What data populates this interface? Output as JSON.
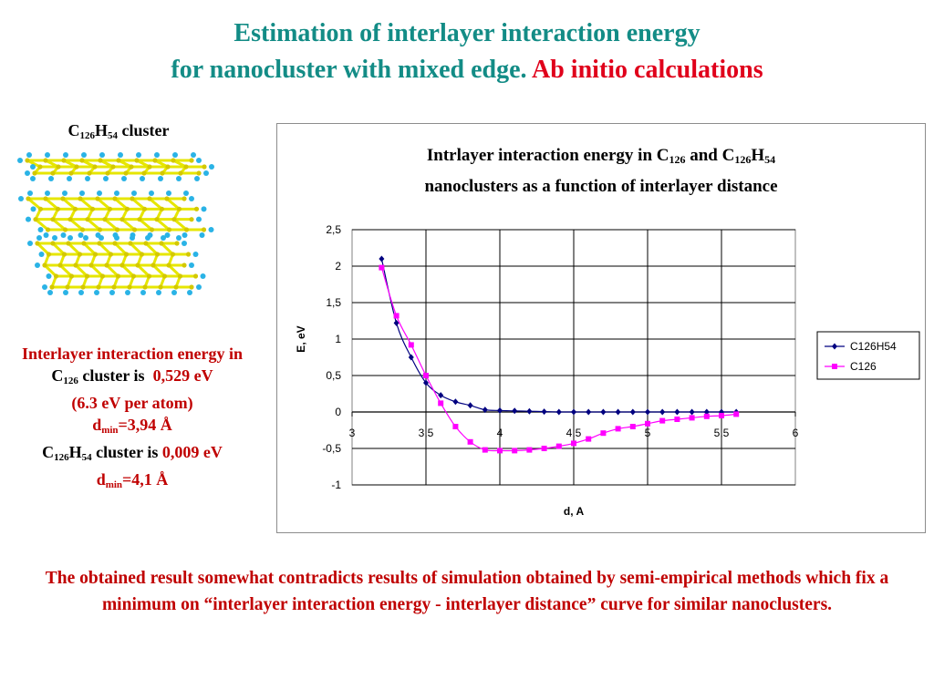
{
  "slide": {
    "title_line1": "Estimation of interlayer interaction energy",
    "title_line2_a": "for nanocluster with mixed edge.",
    "title_line2_b": "Ab initio calculations",
    "cluster_label": {
      "c": "C",
      "c_sub": "126",
      "h": "H",
      "h_sub": "54",
      "rest": "cluster"
    },
    "energy_info": {
      "line1": "Interlayer interaction energy in",
      "c126_c": "C",
      "c126_sub": "126",
      "c126_text": "cluster is",
      "c126_value": "0,529 eV",
      "per_atom": "(6.3 eV per atom)",
      "dmin1_d": "d",
      "dmin1_sub": "min",
      "dmin1_val": "=3,94 Å",
      "c126h54_c": "C",
      "c126h54_csub": "126",
      "c126h54_h": "H",
      "c126h54_hsub": "54",
      "c126h54_text": "cluster is",
      "c126h54_value": "0,009 eV",
      "dmin2_d": "d",
      "dmin2_sub": "min",
      "dmin2_val": "=4,1 Å"
    },
    "conclusion": "The obtained result somewhat contradicts results of simulation obtained by semi-empirical methods which fix a minimum on “interlayer interaction energy - interlayer distance” curve for similar nanoclusters."
  },
  "colors": {
    "teal": "#138C86",
    "red": "#C00000",
    "series1": "#000080",
    "series2": "#FF00FF",
    "carbon": "#E6E600",
    "hydrogen": "#2AB3E6"
  },
  "chart_data": {
    "type": "line",
    "title_line1": [
      "Intrlayer interaction energy in C",
      "126",
      " and C",
      "126",
      "H",
      "54"
    ],
    "title_line2": "nanoclusters as a function of interlayer distance",
    "xlabel": "d, A",
    "ylabel": "E, eV",
    "xlim": [
      3,
      6
    ],
    "ylim": [
      -1,
      2.5
    ],
    "x_ticks": [
      "3",
      "3,5",
      "4",
      "4,5",
      "5",
      "5,5",
      "6"
    ],
    "y_ticks": [
      "2,5",
      "2",
      "1,5",
      "1",
      "0,5",
      "0",
      "-0,5",
      "-1"
    ],
    "grid": true,
    "legend": "right",
    "series": [
      {
        "name": "C126H54",
        "marker": "diamond",
        "x": [
          3.2,
          3.3,
          3.4,
          3.5,
          3.6,
          3.7,
          3.8,
          3.9,
          4.0,
          4.1,
          4.2,
          4.3,
          4.4,
          4.5,
          4.6,
          4.7,
          4.8,
          4.9,
          5.0,
          5.1,
          5.2,
          5.3,
          5.4,
          5.5,
          5.6
        ],
        "values": [
          2.1,
          1.22,
          0.75,
          0.4,
          0.23,
          0.14,
          0.09,
          0.03,
          0.02,
          0.015,
          0.01,
          0.005,
          0.0,
          0.0,
          0.0,
          0.0,
          0.0,
          0.0,
          0.0,
          0.0,
          0.0,
          0.0,
          0.0,
          0.0,
          0.0
        ]
      },
      {
        "name": "C126",
        "marker": "square",
        "x": [
          3.2,
          3.3,
          3.4,
          3.5,
          3.6,
          3.7,
          3.8,
          3.9,
          4.0,
          4.1,
          4.2,
          4.3,
          4.4,
          4.5,
          4.6,
          4.7,
          4.8,
          4.9,
          5.0,
          5.1,
          5.2,
          5.3,
          5.4,
          5.5,
          5.6
        ],
        "values": [
          1.98,
          1.32,
          0.92,
          0.5,
          0.12,
          -0.2,
          -0.41,
          -0.52,
          -0.53,
          -0.53,
          -0.52,
          -0.5,
          -0.47,
          -0.43,
          -0.37,
          -0.29,
          -0.23,
          -0.2,
          -0.16,
          -0.12,
          -0.1,
          -0.08,
          -0.06,
          -0.05,
          -0.03
        ]
      }
    ]
  }
}
